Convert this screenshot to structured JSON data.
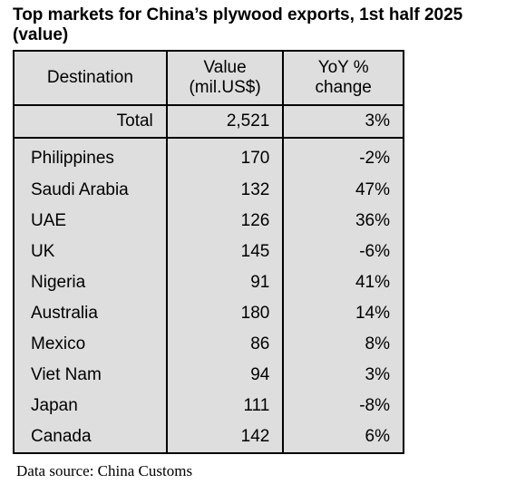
{
  "title": "Top markets for China’s plywood exports, 1st half 2025 (value)",
  "headers": {
    "destination": "Destination",
    "value_line1": "Value",
    "value_line2": "(mil.US$)",
    "yoy_line1": "YoY %",
    "yoy_line2": "change"
  },
  "total": {
    "label": "Total",
    "value": "2,521",
    "yoy": "3%"
  },
  "rows": [
    {
      "destination": "Philippines",
      "value": "170",
      "yoy": "-2%"
    },
    {
      "destination": "Saudi Arabia",
      "value": "132",
      "yoy": "47%"
    },
    {
      "destination": "UAE",
      "value": "126",
      "yoy": "36%"
    },
    {
      "destination": "UK",
      "value": "145",
      "yoy": "-6%"
    },
    {
      "destination": "Nigeria",
      "value": "91",
      "yoy": "41%"
    },
    {
      "destination": "Australia",
      "value": "180",
      "yoy": "14%"
    },
    {
      "destination": "Mexico",
      "value": "86",
      "yoy": "8%"
    },
    {
      "destination": "Viet Nam",
      "value": "94",
      "yoy": "3%"
    },
    {
      "destination": "Japan",
      "value": "111",
      "yoy": "-8%"
    },
    {
      "destination": "Canada",
      "value": "142",
      "yoy": "6%"
    }
  ],
  "source": "Data source: China Customs",
  "colors": {
    "table_background": "#dedede",
    "border": "#000000"
  }
}
